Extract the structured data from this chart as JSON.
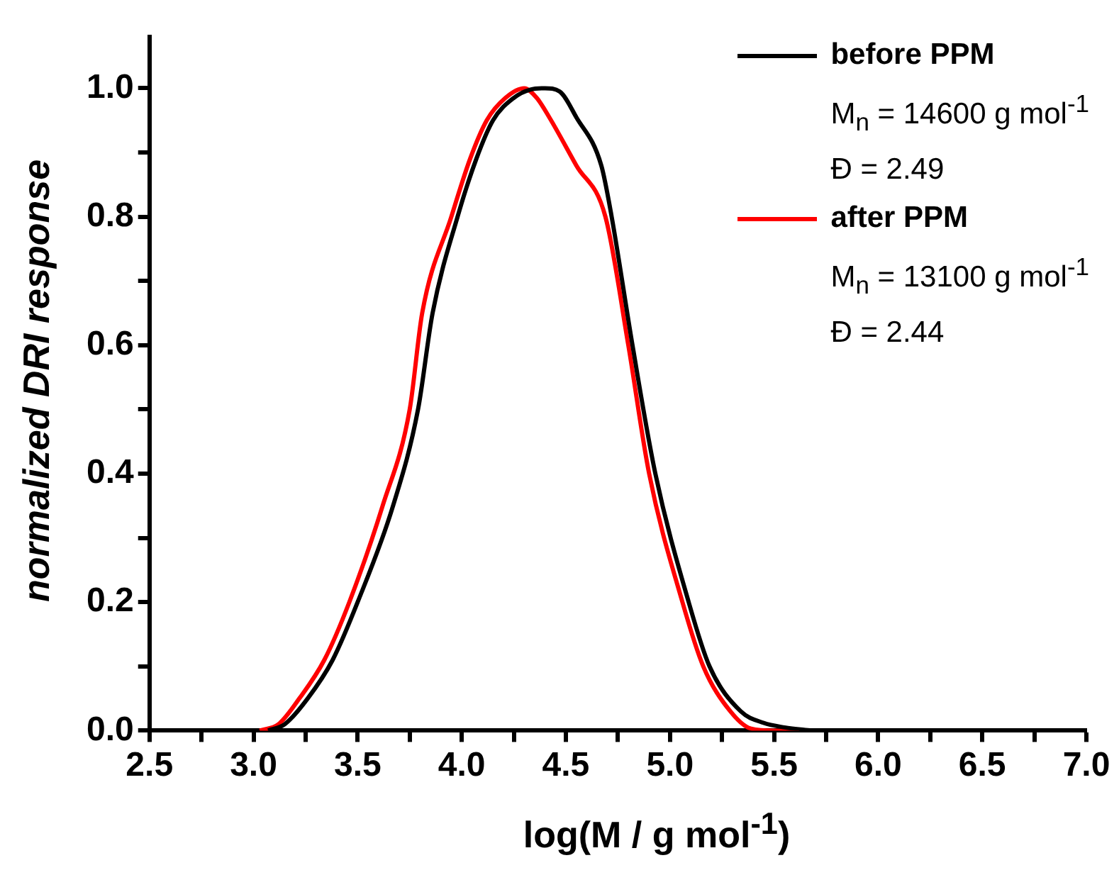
{
  "chart_data": {
    "type": "line",
    "xlabel": "log(M / g mol$^{-1}$)",
    "ylabel": "normalized DRI response",
    "xlim": [
      2.5,
      7.0
    ],
    "xticks": [
      2.5,
      {
        "value": 2.75,
        "label": null
      },
      {
        "value": 3,
        "label": "3.0"
      },
      {
        "value": 3.25,
        "label": null
      },
      3.5,
      {
        "value": 3.75,
        "label": null
      },
      {
        "value": 4,
        "label": "4.0"
      },
      {
        "value": 4.25,
        "label": null
      },
      4.5,
      {
        "value": 4.75,
        "label": null
      },
      {
        "value": 5,
        "label": "5.0"
      },
      {
        "value": 5.25,
        "label": null
      },
      5.5,
      {
        "value": 5.75,
        "label": null
      },
      {
        "value": 6,
        "label": "6.0"
      },
      {
        "value": 6.25,
        "label": null
      },
      6.5,
      {
        "value": 6.75,
        "label": null
      },
      {
        "value": 7,
        "label": "7.0"
      }
    ],
    "ylim": [
      0,
      1.08
    ],
    "yticks": [
      {
        "value": 0,
        "label": "0.0"
      },
      {
        "value": 0.1,
        "label": null
      },
      0.2,
      {
        "value": 0.3,
        "label": null
      },
      0.4,
      {
        "value": 0.5,
        "label": null
      },
      0.6,
      {
        "value": 0.7,
        "label": null
      },
      0.8,
      {
        "value": 0.9,
        "label": null
      },
      {
        "value": 1.0,
        "label": "1.0"
      }
    ],
    "grid": false,
    "legend": "top right",
    "series": [
      {
        "name": "before PPM",
        "color": "#000000",
        "x": [
          3.07,
          3.15,
          3.26,
          3.38,
          3.5,
          3.67,
          3.79,
          3.86,
          3.98,
          4.07,
          4.15,
          4.25,
          4.33,
          4.4,
          4.47,
          4.55,
          4.67,
          4.72,
          4.82,
          4.93,
          5.09,
          5.19,
          5.34,
          5.45,
          5.55,
          5.68
        ],
        "values": [
          0,
          0.01,
          0.05,
          0.11,
          0.2,
          0.35,
          0.5,
          0.65,
          0.8,
          0.89,
          0.95,
          0.985,
          0.998,
          1.0,
          0.995,
          0.955,
          0.88,
          0.8,
          0.6,
          0.4,
          0.2,
          0.1,
          0.03,
          0.012,
          0.005,
          0
        ]
      },
      {
        "name": "after PPM",
        "color": "#ff0000",
        "x": [
          3.03,
          3.12,
          3.22,
          3.34,
          3.46,
          3.62,
          3.75,
          3.81,
          3.95,
          4.04,
          4.12,
          4.21,
          4.3,
          4.36,
          4.42,
          4.55,
          4.69,
          4.8,
          4.9,
          5.06,
          5.16,
          5.29,
          5.39,
          5.5,
          5.62
        ],
        "values": [
          0,
          0.01,
          0.05,
          0.11,
          0.2,
          0.35,
          0.5,
          0.65,
          0.8,
          0.89,
          0.95,
          0.985,
          1.0,
          0.985,
          0.955,
          0.88,
          0.8,
          0.6,
          0.4,
          0.2,
          0.1,
          0.03,
          0.003,
          0,
          0
        ]
      }
    ],
    "annotations": [
      "M$_{n}$ = 14600 g mol$^{-1}$",
      "Đ = 2.49",
      "M$_{n}$ = 13100 g mol$^{-1}$",
      "Đ = 2.44"
    ]
  }
}
